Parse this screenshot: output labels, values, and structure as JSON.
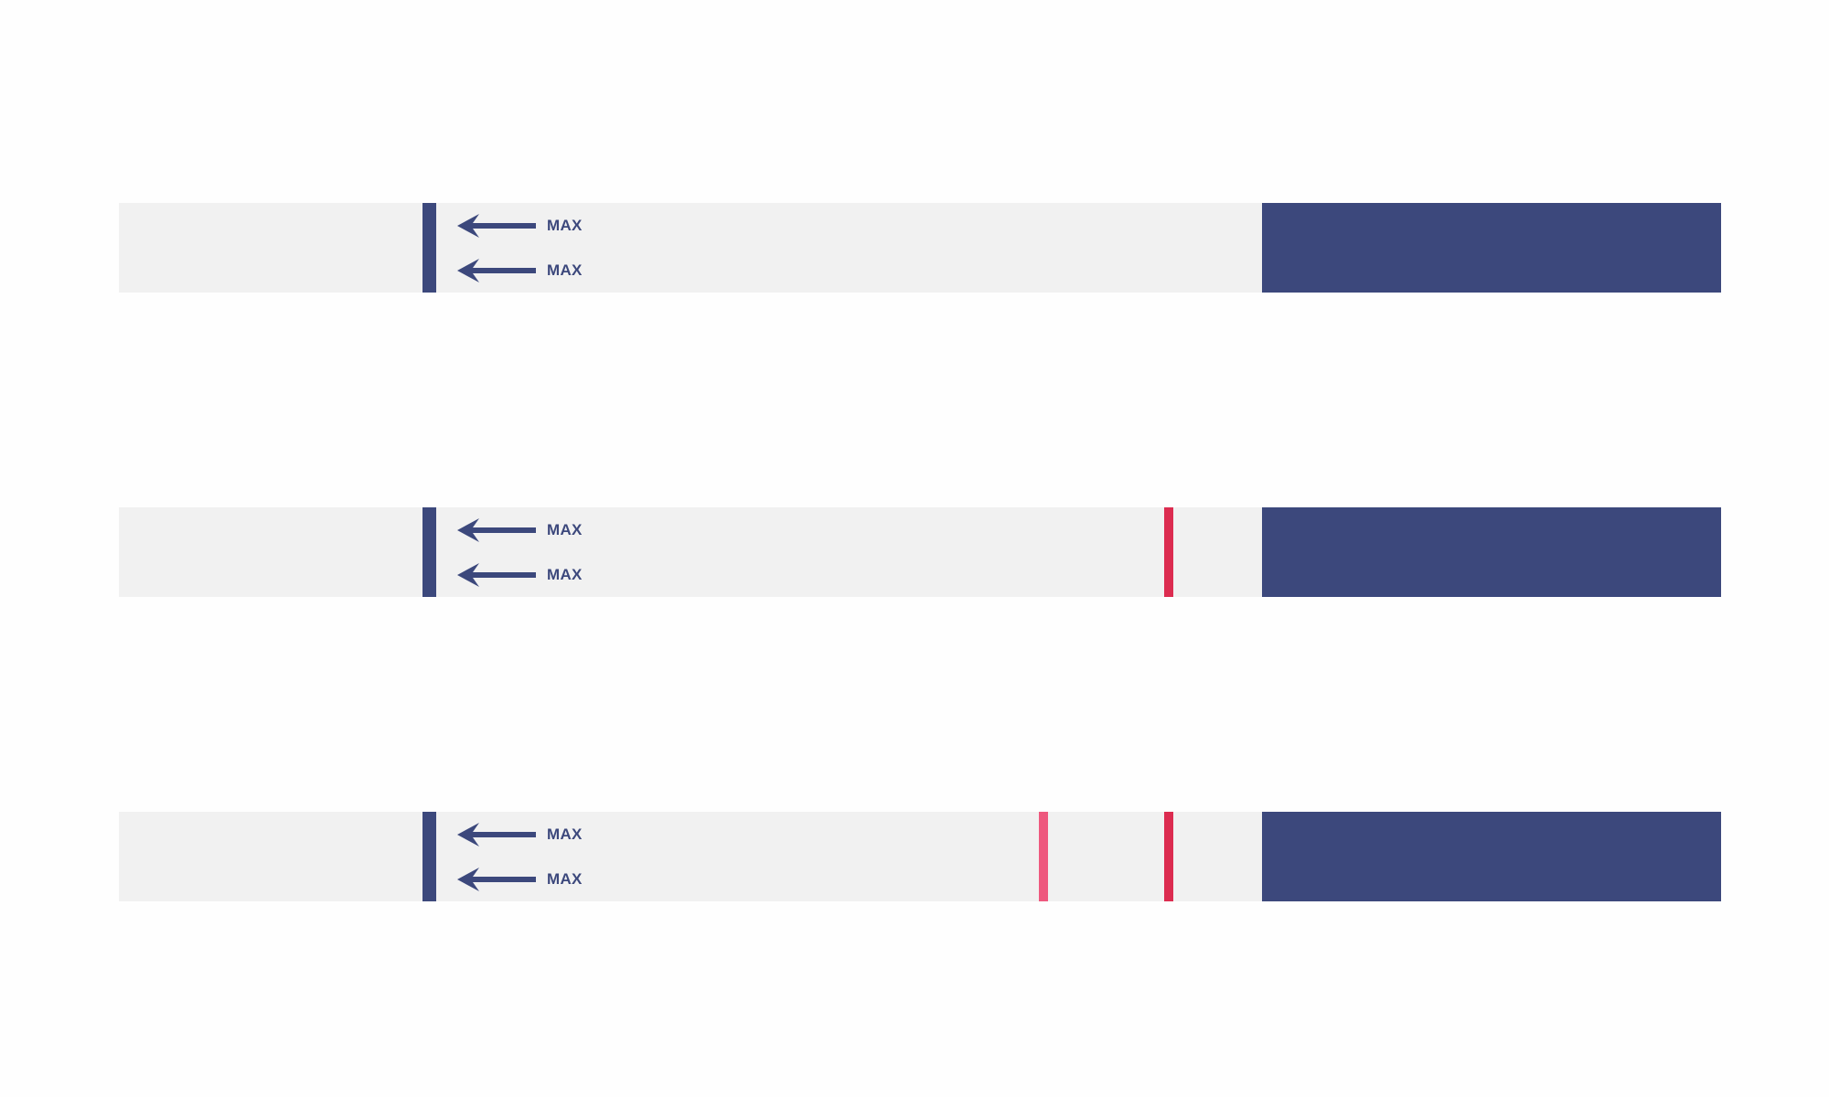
{
  "colors": {
    "background": "#fefefe",
    "strip": "#f1f1f1",
    "navy": "#3c487c",
    "control_line": "#dc2c50",
    "test_line": "#ee587e"
  },
  "icons": {
    "arrow": "left-arrow-icon"
  },
  "strips": [
    {
      "max_labels": [
        "MAX",
        "MAX"
      ],
      "lines_visible": {
        "control": false,
        "test": false
      }
    },
    {
      "max_labels": [
        "MAX",
        "MAX"
      ],
      "lines_visible": {
        "control": true,
        "test": false
      }
    },
    {
      "max_labels": [
        "MAX",
        "MAX"
      ],
      "lines_visible": {
        "control": true,
        "test": true
      }
    }
  ]
}
